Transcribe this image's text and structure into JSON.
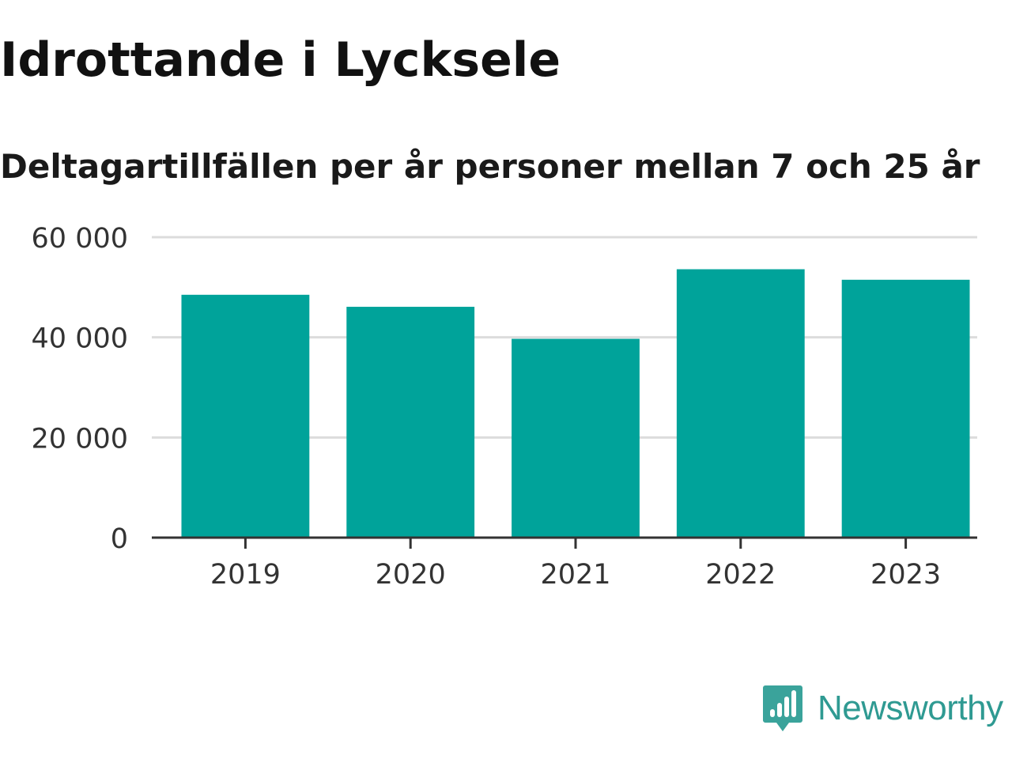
{
  "chart_data": {
    "type": "bar",
    "title": "Idrottande i Lycksele",
    "subtitle": "Deltagartillfällen per år personer mellan 7 och 25 år",
    "categories": [
      "2019",
      "2020",
      "2021",
      "2022",
      "2023"
    ],
    "values": [
      48500,
      46100,
      39700,
      53600,
      51500
    ],
    "ylim": [
      0,
      60000
    ],
    "yticks": [
      0,
      20000,
      40000,
      60000
    ],
    "ytick_labels": [
      "0",
      "20 000",
      "40 000",
      "60 000"
    ],
    "xlabel": "",
    "ylabel": "",
    "grid": true,
    "legend": "none",
    "bar_color": "#00a39a"
  },
  "brand": {
    "name": "Newsworthy",
    "icon": "newsworthy-logo-icon",
    "color": "#2f9a92"
  }
}
